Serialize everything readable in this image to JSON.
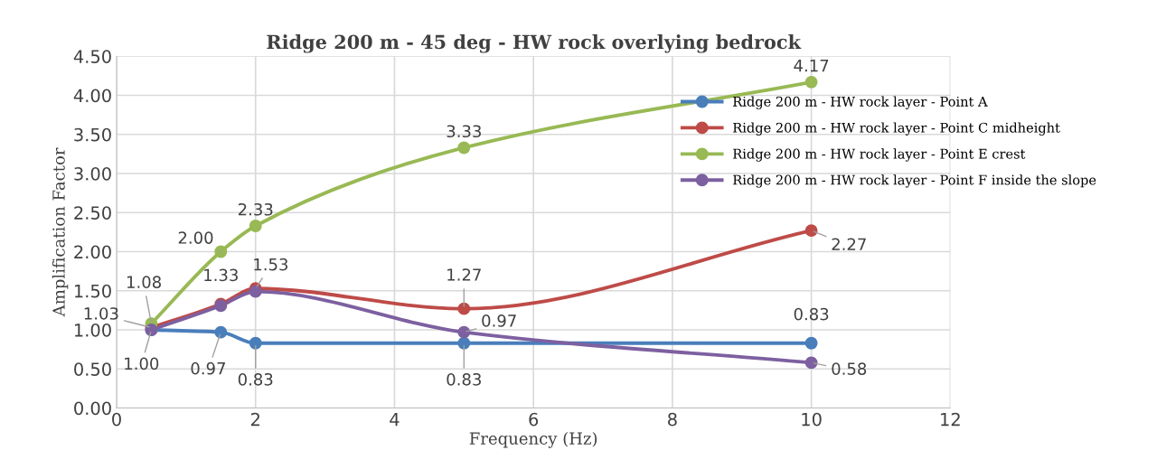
{
  "chart_data": {
    "type": "line",
    "title": "Ridge 200 m - 45 deg - HW rock overlying bedrock",
    "xlabel": "Frequency (Hz)",
    "ylabel": "Amplification Factor",
    "x": [
      0.5,
      1.5,
      2,
      5,
      10
    ],
    "series": [
      {
        "name": "Ridge 200 m - HW rock layer - Point A",
        "color": "#4a7ebb",
        "values": [
          1.0,
          0.97,
          0.83,
          0.83,
          0.83
        ],
        "value_labels": [
          "1.00",
          "0.97",
          "0.83",
          "0.83",
          "0.83"
        ]
      },
      {
        "name": "Ridge 200 m - HW rock layer - Point C midheight",
        "color": "#be4b48",
        "values": [
          1.03,
          1.33,
          1.53,
          1.27,
          2.27
        ],
        "value_labels": [
          "1.03",
          "1.33",
          "1.53",
          "1.27",
          "2.27"
        ]
      },
      {
        "name": "Ridge 200 m - HW rock layer - Point E crest",
        "color": "#98b954",
        "values": [
          1.08,
          2.0,
          2.33,
          3.33,
          4.17
        ],
        "value_labels": [
          "1.08",
          "2.00",
          "2.33",
          "3.33",
          "4.17"
        ]
      },
      {
        "name": "Ridge 200 m - HW rock layer - Point F inside the slope",
        "color": "#7d60a0",
        "values": [
          1.0,
          1.31,
          1.49,
          0.97,
          0.58
        ],
        "value_labels": [
          null,
          null,
          null,
          "0.97",
          "0.58"
        ]
      }
    ],
    "xlim": [
      0,
      12
    ],
    "xticks": [
      0,
      2,
      4,
      6,
      8,
      10,
      12
    ],
    "ylim": [
      0,
      4.5
    ],
    "yticks": [
      {
        "value": 0,
        "label": "0.00"
      },
      {
        "value": 0.5,
        "label": "0.50"
      },
      {
        "value": 1,
        "label": "1.00"
      },
      {
        "value": 1.5,
        "label": "1.50"
      },
      {
        "value": 2,
        "label": "2.00"
      },
      {
        "value": 2.5,
        "label": "2.50"
      },
      {
        "value": 3,
        "label": "3.00"
      },
      {
        "value": 3.5,
        "label": "3.50"
      },
      {
        "value": 4,
        "label": "4.00"
      },
      {
        "value": 4.5,
        "label": "4.50"
      }
    ],
    "grid": true,
    "legend": "right",
    "marker": "circle",
    "line_style": "solid"
  }
}
